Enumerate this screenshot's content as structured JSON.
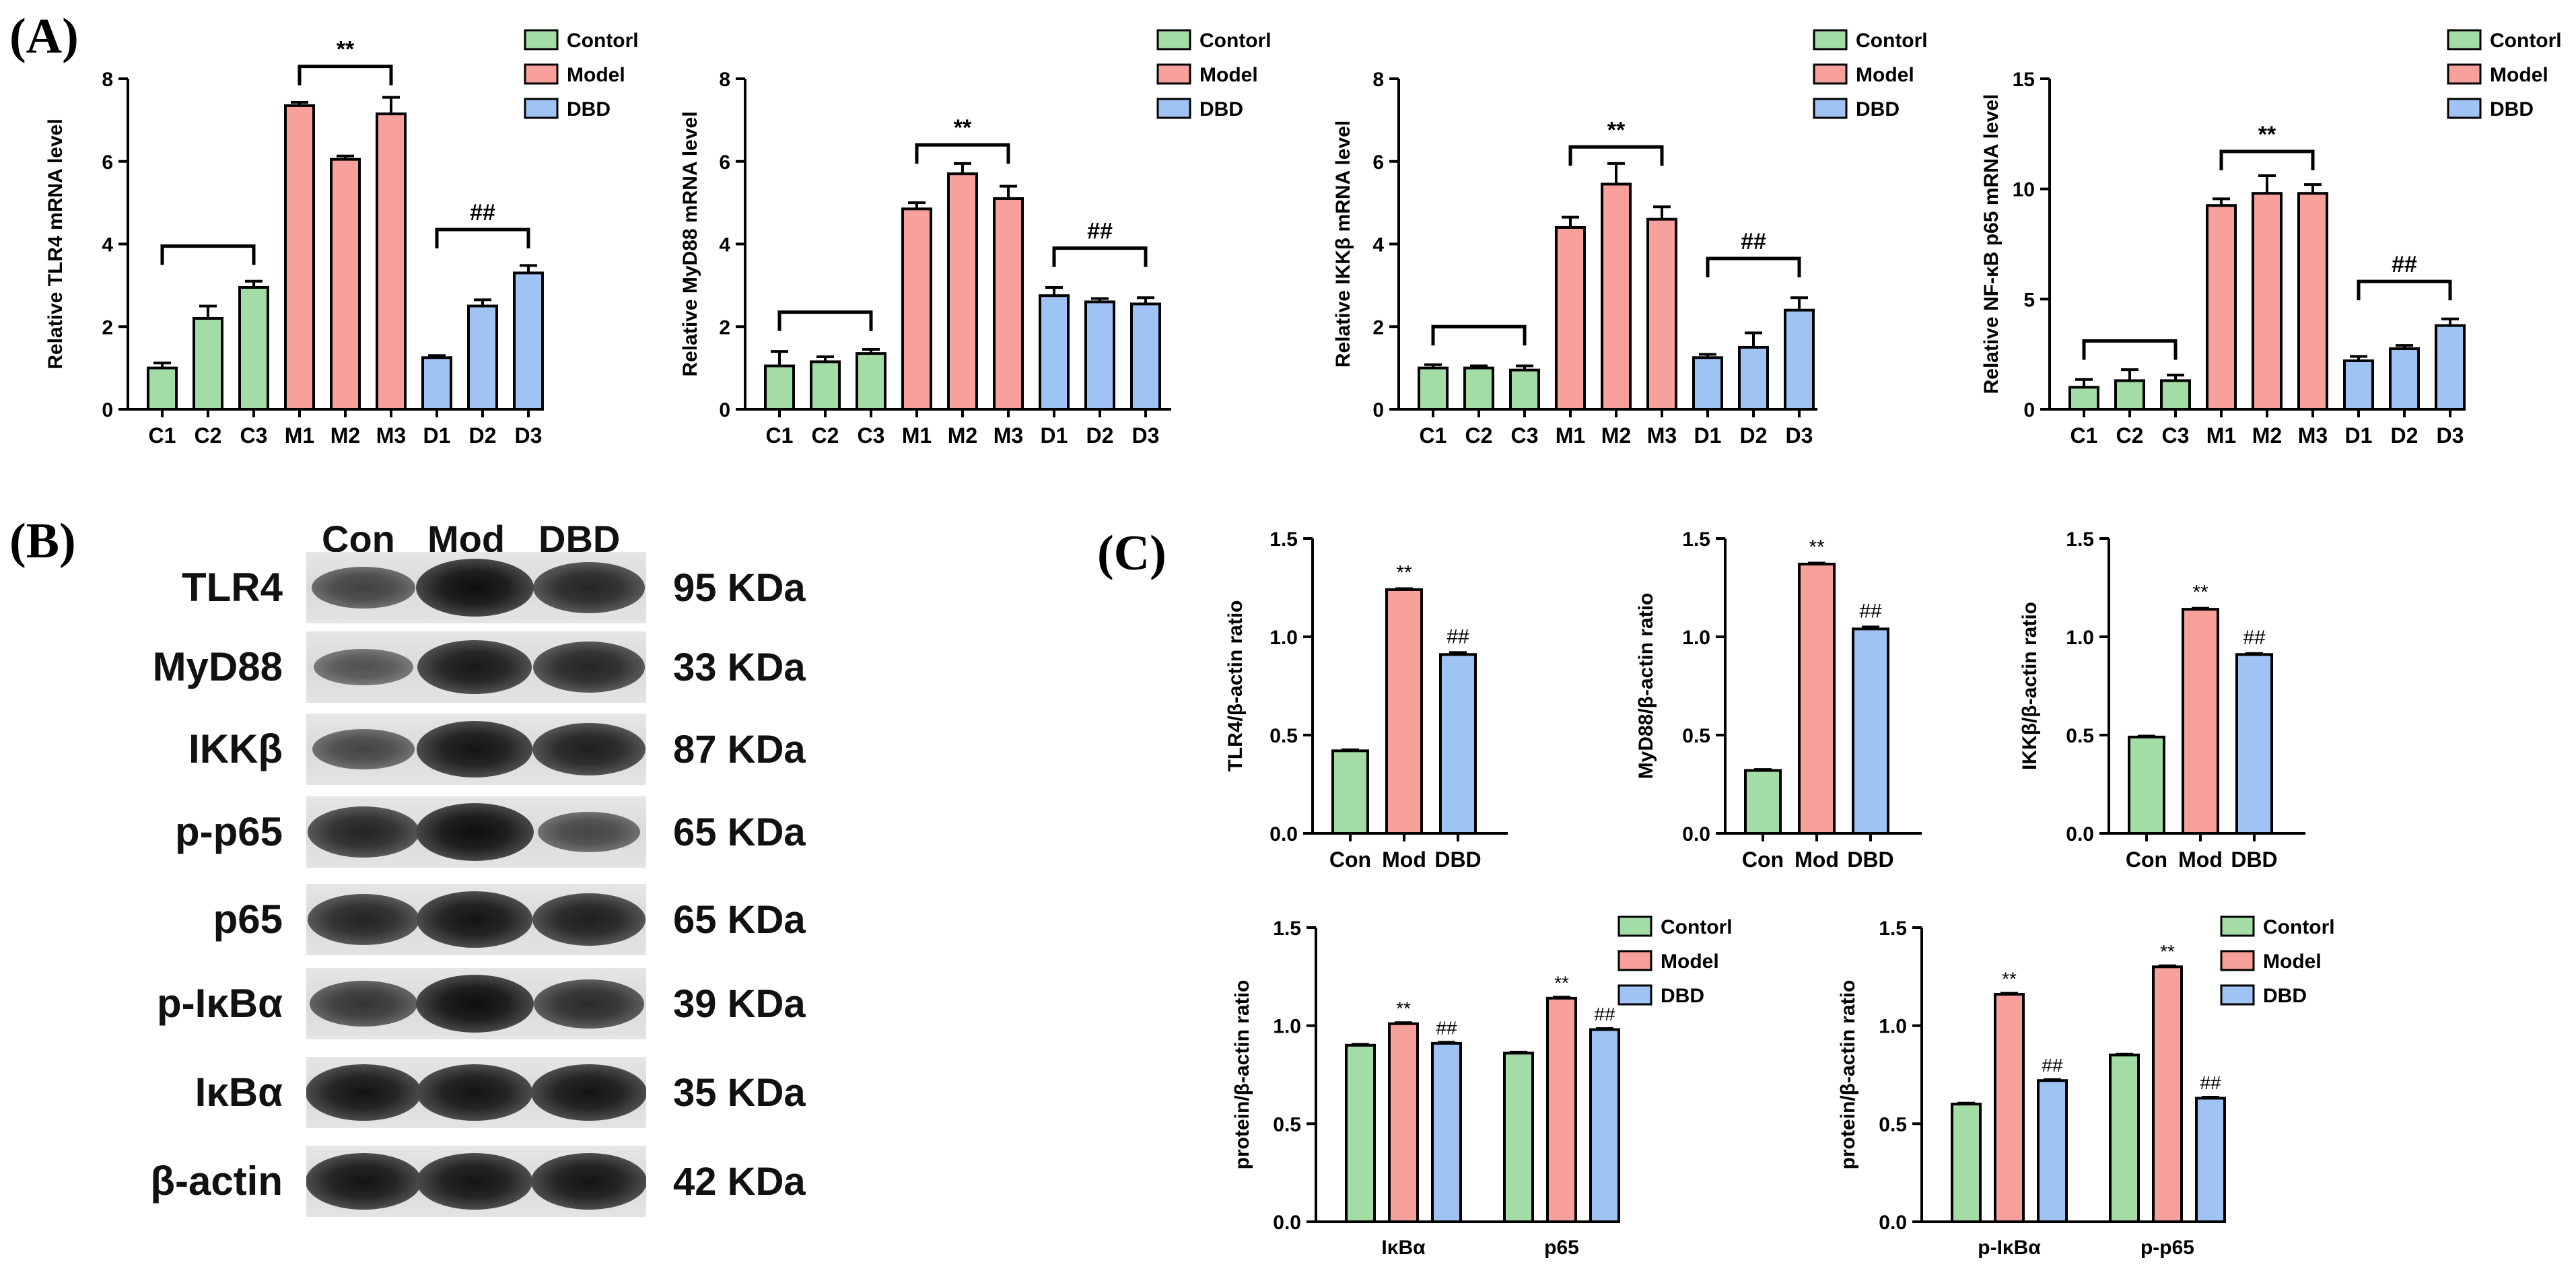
{
  "panel_labels": {
    "A": "(A)",
    "B": "(B)",
    "C": "(C)"
  },
  "colors": {
    "control": "#a3dda5",
    "model": "#f7a09c",
    "dbd": "#9fc3f5",
    "axis": "#000000"
  },
  "legend_labels": [
    "Contorl",
    "Model",
    "DBD"
  ],
  "chart_data": [
    {
      "id": "tlr4_mrna",
      "type": "bar",
      "ylabel": "Relative TLR4 mRNA level",
      "ylim": [
        0,
        8
      ],
      "yticks": [
        0,
        2,
        4,
        6,
        8
      ],
      "categories": [
        "C1",
        "C2",
        "C3",
        "M1",
        "M2",
        "M3",
        "D1",
        "D2",
        "D3"
      ],
      "groups": [
        "control",
        "control",
        "control",
        "model",
        "model",
        "model",
        "dbd",
        "dbd",
        "dbd"
      ],
      "values": [
        1.0,
        2.2,
        2.95,
        7.35,
        6.05,
        7.15,
        1.25,
        2.5,
        3.3
      ],
      "errors": [
        0.12,
        0.3,
        0.15,
        0.08,
        0.08,
        0.4,
        0.05,
        0.15,
        0.18
      ],
      "brackets": [
        {
          "from": 0,
          "to": 2,
          "y": 3.95,
          "label": ""
        },
        {
          "from": 3,
          "to": 5,
          "y": 8.3,
          "label": "**"
        },
        {
          "from": 6,
          "to": 8,
          "y": 4.35,
          "label": "##"
        }
      ]
    },
    {
      "id": "myd88_mrna",
      "type": "bar",
      "ylabel": "Relative MyD88 mRNA level",
      "ylim": [
        0,
        8
      ],
      "yticks": [
        0,
        2,
        4,
        6,
        8
      ],
      "categories": [
        "C1",
        "C2",
        "C3",
        "M1",
        "M2",
        "M3",
        "D1",
        "D2",
        "D3"
      ],
      "groups": [
        "control",
        "control",
        "control",
        "model",
        "model",
        "model",
        "dbd",
        "dbd",
        "dbd"
      ],
      "values": [
        1.05,
        1.15,
        1.35,
        4.85,
        5.7,
        5.1,
        2.75,
        2.6,
        2.55
      ],
      "errors": [
        0.35,
        0.12,
        0.1,
        0.15,
        0.25,
        0.3,
        0.2,
        0.08,
        0.15
      ],
      "brackets": [
        {
          "from": 0,
          "to": 2,
          "y": 2.35,
          "label": ""
        },
        {
          "from": 3,
          "to": 5,
          "y": 6.4,
          "label": "**"
        },
        {
          "from": 6,
          "to": 8,
          "y": 3.9,
          "label": "##"
        }
      ]
    },
    {
      "id": "ikkb_mrna",
      "type": "bar",
      "ylabel": "Relative IKKβ mRNA level",
      "ylim": [
        0,
        8
      ],
      "yticks": [
        0,
        2,
        4,
        6,
        8
      ],
      "categories": [
        "C1",
        "C2",
        "C3",
        "M1",
        "M2",
        "M3",
        "D1",
        "D2",
        "D3"
      ],
      "groups": [
        "control",
        "control",
        "control",
        "model",
        "model",
        "model",
        "dbd",
        "dbd",
        "dbd"
      ],
      "values": [
        1.0,
        1.0,
        0.95,
        4.4,
        5.45,
        4.6,
        1.25,
        1.5,
        2.4
      ],
      "errors": [
        0.08,
        0.05,
        0.1,
        0.25,
        0.5,
        0.3,
        0.08,
        0.35,
        0.3
      ],
      "brackets": [
        {
          "from": 0,
          "to": 2,
          "y": 2.0,
          "label": ""
        },
        {
          "from": 3,
          "to": 5,
          "y": 6.35,
          "label": "**"
        },
        {
          "from": 6,
          "to": 8,
          "y": 3.65,
          "label": "##"
        }
      ]
    },
    {
      "id": "p65_mrna",
      "type": "bar",
      "ylabel": "Relative NF-κB p65 mRNA level",
      "ylim": [
        0,
        15
      ],
      "yticks": [
        0,
        5,
        10,
        15
      ],
      "categories": [
        "C1",
        "C2",
        "C3",
        "M1",
        "M2",
        "M3",
        "D1",
        "D2",
        "D3"
      ],
      "groups": [
        "control",
        "control",
        "control",
        "model",
        "model",
        "model",
        "dbd",
        "dbd",
        "dbd"
      ],
      "values": [
        1.0,
        1.3,
        1.3,
        9.25,
        9.8,
        9.8,
        2.2,
        2.75,
        3.8
      ],
      "errors": [
        0.35,
        0.5,
        0.25,
        0.3,
        0.8,
        0.4,
        0.2,
        0.15,
        0.3
      ],
      "brackets": [
        {
          "from": 0,
          "to": 2,
          "y": 3.1,
          "label": ""
        },
        {
          "from": 3,
          "to": 5,
          "y": 11.7,
          "label": "**"
        },
        {
          "from": 6,
          "to": 8,
          "y": 5.8,
          "label": "##"
        }
      ]
    },
    {
      "id": "tlr4_protein",
      "type": "bar",
      "ylabel": "TLR4/β-actin ratio",
      "ylim": [
        0,
        1.5
      ],
      "yticks": [
        "0.0",
        "0.5",
        "1.0",
        "1.5"
      ],
      "categories": [
        "Con",
        "Mod",
        "DBD"
      ],
      "groups": [
        "control",
        "model",
        "dbd"
      ],
      "values": [
        0.42,
        1.24,
        0.91
      ],
      "errors": [
        0.005,
        0.005,
        0.01
      ],
      "marks": [
        "",
        "**",
        "##"
      ]
    },
    {
      "id": "myd88_protein",
      "type": "bar",
      "ylabel": "MyD88/β-actin ratio",
      "ylim": [
        0,
        1.5
      ],
      "yticks": [
        "0.0",
        "0.5",
        "1.0",
        "1.5"
      ],
      "categories": [
        "Con",
        "Mod",
        "DBD"
      ],
      "groups": [
        "control",
        "model",
        "dbd"
      ],
      "values": [
        0.32,
        1.37,
        1.04
      ],
      "errors": [
        0.005,
        0.005,
        0.01
      ],
      "marks": [
        "",
        "**",
        "##"
      ]
    },
    {
      "id": "ikkb_protein",
      "type": "bar",
      "ylabel": "IKKβ/β-actin ratio",
      "ylim": [
        0,
        1.5
      ],
      "yticks": [
        "0.0",
        "0.5",
        "1.0",
        "1.5"
      ],
      "categories": [
        "Con",
        "Mod",
        "DBD"
      ],
      "groups": [
        "control",
        "model",
        "dbd"
      ],
      "values": [
        0.49,
        1.14,
        0.91
      ],
      "errors": [
        0.005,
        0.005,
        0.005
      ],
      "marks": [
        "",
        "**",
        "##"
      ]
    },
    {
      "id": "ikba_p65_protein",
      "type": "bar",
      "ylabel": "protein/β-actin ratio",
      "ylim": [
        0,
        1.5
      ],
      "yticks": [
        "0.0",
        "0.5",
        "1.0",
        "1.5"
      ],
      "categories": [
        "IκBα",
        "p65"
      ],
      "series": [
        {
          "name": "Contorl",
          "group": "control",
          "values": [
            0.9,
            0.86
          ],
          "errors": [
            0.005,
            0.005
          ],
          "marks": [
            "",
            ""
          ]
        },
        {
          "name": "Model",
          "group": "model",
          "values": [
            1.01,
            1.14
          ],
          "errors": [
            0.005,
            0.005
          ],
          "marks": [
            "**",
            "**"
          ]
        },
        {
          "name": "DBD",
          "group": "dbd",
          "values": [
            0.91,
            0.98
          ],
          "errors": [
            0.005,
            0.005
          ],
          "marks": [
            "##",
            "##"
          ]
        }
      ]
    },
    {
      "id": "pikba_pp65_protein",
      "type": "bar",
      "ylabel": "protein/β-actin ratio",
      "ylim": [
        0,
        1.5
      ],
      "yticks": [
        "0.0",
        "0.5",
        "1.0",
        "1.5"
      ],
      "categories": [
        "p-IκBα",
        "p-p65"
      ],
      "series": [
        {
          "name": "Contorl",
          "group": "control",
          "values": [
            0.6,
            0.85
          ],
          "errors": [
            0.005,
            0.005
          ],
          "marks": [
            "",
            ""
          ]
        },
        {
          "name": "Model",
          "group": "model",
          "values": [
            1.16,
            1.3
          ],
          "errors": [
            0.005,
            0.005
          ],
          "marks": [
            "**",
            "**"
          ]
        },
        {
          "name": "DBD",
          "group": "dbd",
          "values": [
            0.72,
            0.63
          ],
          "errors": [
            0.005,
            0.005
          ],
          "marks": [
            "##",
            "##"
          ]
        }
      ]
    }
  ],
  "blot": {
    "lanes": [
      "Con",
      "Mod",
      "DBD"
    ],
    "rows": [
      {
        "name": "TLR4",
        "size": "95 KDa",
        "intensity": [
          0.55,
          1.0,
          0.8
        ]
      },
      {
        "name": "MyD88",
        "size": "33 KDa",
        "intensity": [
          0.4,
          0.9,
          0.8
        ]
      },
      {
        "name": "IKKβ",
        "size": "87 KDa",
        "intensity": [
          0.5,
          0.95,
          0.85
        ]
      },
      {
        "name": "p-p65",
        "size": "65 KDa",
        "intensity": [
          0.8,
          1.0,
          0.5
        ]
      },
      {
        "name": "p65",
        "size": "65 KDa",
        "intensity": [
          0.8,
          0.95,
          0.85
        ]
      },
      {
        "name": "p-IκBα",
        "size": "39 KDa",
        "intensity": [
          0.65,
          1.0,
          0.75
        ]
      },
      {
        "name": "IκBα",
        "size": "35 KDa",
        "intensity": [
          0.95,
          0.95,
          0.95
        ]
      },
      {
        "name": "β-actin",
        "size": "42 KDa",
        "intensity": [
          0.95,
          0.95,
          0.95
        ]
      }
    ]
  }
}
